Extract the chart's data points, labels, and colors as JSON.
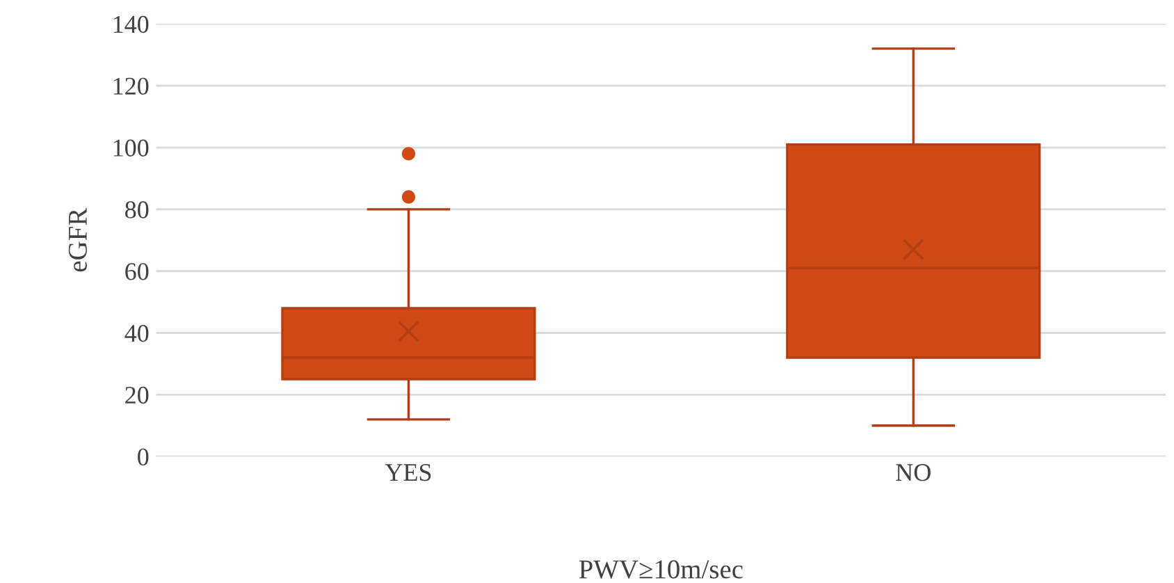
{
  "chart_data": {
    "type": "box",
    "xlabel": "PWV≥10m/sec",
    "ylabel": "eGFR",
    "categories": [
      "YES",
      "NO"
    ],
    "color": "#d04a17",
    "boxes": [
      {
        "low": 12,
        "q1": 25,
        "median": 32,
        "q3": 48,
        "high": 80,
        "mean": 40.5,
        "outliers": [
          84,
          98
        ]
      },
      {
        "low": 10,
        "q1": 32,
        "median": 61,
        "q3": 101,
        "high": 132,
        "mean": 67
      }
    ],
    "ylim": [
      0,
      140
    ],
    "yticks": [
      0,
      20,
      40,
      60,
      80,
      100,
      120,
      140
    ],
    "grid": "y",
    "legend": false
  }
}
